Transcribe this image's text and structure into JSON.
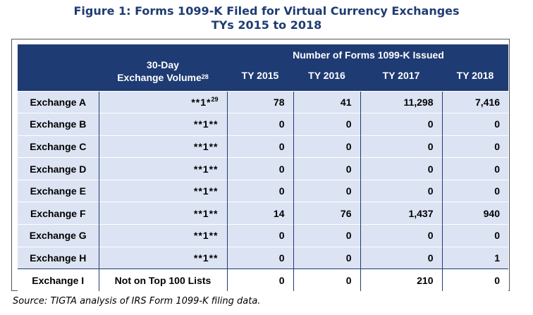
{
  "figure": {
    "title_line1": "Figure 1:  Forms 1099-K Filed for Virtual Currency Exchanges",
    "title_line2": "TYs 2015 to 2018"
  },
  "table": {
    "volume_header_line1": "30-Day",
    "volume_header_line2": "Exchange Volume",
    "volume_header_footnote": "28",
    "group_header": "Number of Forms 1099-K Issued",
    "years": [
      "TY 2015",
      "TY 2016",
      "TY 2017",
      "TY 2018"
    ],
    "rows": [
      {
        "exchange": "Exchange A",
        "volume": "**1*",
        "volume_footnote": "29",
        "values": [
          "78",
          "41",
          "11,298",
          "7,416"
        ]
      },
      {
        "exchange": "Exchange B",
        "volume": "**1**",
        "volume_footnote": "",
        "values": [
          "0",
          "0",
          "0",
          "0"
        ]
      },
      {
        "exchange": "Exchange C",
        "volume": "**1**",
        "volume_footnote": "",
        "values": [
          "0",
          "0",
          "0",
          "0"
        ]
      },
      {
        "exchange": "Exchange D",
        "volume": "**1**",
        "volume_footnote": "",
        "values": [
          "0",
          "0",
          "0",
          "0"
        ]
      },
      {
        "exchange": "Exchange E",
        "volume": "**1**",
        "volume_footnote": "",
        "values": [
          "0",
          "0",
          "0",
          "0"
        ]
      },
      {
        "exchange": "Exchange F",
        "volume": "**1**",
        "volume_footnote": "",
        "values": [
          "14",
          "76",
          "1,437",
          "940"
        ]
      },
      {
        "exchange": "Exchange G",
        "volume": "**1**",
        "volume_footnote": "",
        "values": [
          "0",
          "0",
          "0",
          "0"
        ]
      },
      {
        "exchange": "Exchange H",
        "volume": "**1**",
        "volume_footnote": "",
        "values": [
          "0",
          "0",
          "0",
          "1"
        ]
      },
      {
        "exchange": "Exchange I",
        "volume": "Not on Top 100 Lists",
        "volume_footnote": "",
        "values": [
          "0",
          "0",
          "210",
          "0"
        ]
      }
    ]
  },
  "source": "Source:  TIGTA analysis of IRS Form 1099-K filing data."
}
